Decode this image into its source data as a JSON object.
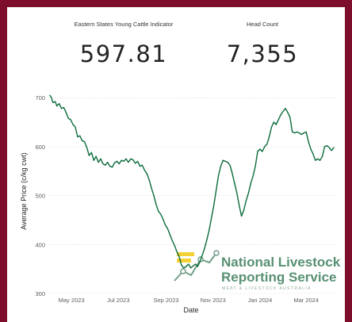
{
  "kpis": {
    "indicator_label": "Eastern States Young Cattle Indicator",
    "indicator_value": "597.81",
    "head_label": "Head Count",
    "head_value": "7,355"
  },
  "watermark": {
    "line1": "National Livestock",
    "line2": "Reporting Service",
    "line3": "MEAT & LIVESTOCK AUSTRALIA"
  },
  "colors": {
    "frame": "#7d0f2c",
    "series": "#0b6b3a",
    "grid": "#e1dfdd",
    "watermark_green": "#3a7d5a",
    "watermark_yellow": "#f2c811"
  },
  "chart_data": {
    "type": "line",
    "xlabel": "Date",
    "ylabel": "Average Price (c/kg cwt)",
    "xlim": [
      "2023-04-01",
      "2024-04-10"
    ],
    "ylim": [
      300,
      710
    ],
    "yticks": [
      300,
      400,
      500,
      600,
      700
    ],
    "xticks": [
      {
        "date": "2023-05-01",
        "label": "May 2023"
      },
      {
        "date": "2023-07-01",
        "label": "Jul 2023"
      },
      {
        "date": "2023-09-01",
        "label": "Sep 2023"
      },
      {
        "date": "2023-11-01",
        "label": "Nov 2023"
      },
      {
        "date": "2024-01-01",
        "label": "Jan 2024"
      },
      {
        "date": "2024-03-01",
        "label": "Mar 2024"
      }
    ],
    "grid": true,
    "series": [
      {
        "color": "#0b6b3a",
        "points": [
          [
            "2023-04-03",
            705
          ],
          [
            "2023-04-05",
            700
          ],
          [
            "2023-04-07",
            690
          ],
          [
            "2023-04-10",
            692
          ],
          [
            "2023-04-12",
            683
          ],
          [
            "2023-04-15",
            688
          ],
          [
            "2023-04-18",
            678
          ],
          [
            "2023-04-21",
            680
          ],
          [
            "2023-04-24",
            670
          ],
          [
            "2023-04-27",
            658
          ],
          [
            "2023-04-30",
            655
          ],
          [
            "2023-05-03",
            645
          ],
          [
            "2023-05-06",
            640
          ],
          [
            "2023-05-09",
            620
          ],
          [
            "2023-05-12",
            622
          ],
          [
            "2023-05-15",
            612
          ],
          [
            "2023-05-18",
            610
          ],
          [
            "2023-05-21",
            598
          ],
          [
            "2023-05-24",
            582
          ],
          [
            "2023-05-27",
            588
          ],
          [
            "2023-05-30",
            572
          ],
          [
            "2023-06-02",
            580
          ],
          [
            "2023-06-05",
            568
          ],
          [
            "2023-06-08",
            575
          ],
          [
            "2023-06-11",
            565
          ],
          [
            "2023-06-14",
            562
          ],
          [
            "2023-06-17",
            568
          ],
          [
            "2023-06-20",
            560
          ],
          [
            "2023-06-23",
            558
          ],
          [
            "2023-06-26",
            567
          ],
          [
            "2023-06-29",
            570
          ],
          [
            "2023-07-02",
            565
          ],
          [
            "2023-07-05",
            572
          ],
          [
            "2023-07-08",
            570
          ],
          [
            "2023-07-11",
            575
          ],
          [
            "2023-07-14",
            568
          ],
          [
            "2023-07-17",
            575
          ],
          [
            "2023-07-20",
            573
          ],
          [
            "2023-07-23",
            566
          ],
          [
            "2023-07-26",
            570
          ],
          [
            "2023-07-29",
            560
          ],
          [
            "2023-08-01",
            562
          ],
          [
            "2023-08-04",
            552
          ],
          [
            "2023-08-07",
            545
          ],
          [
            "2023-08-10",
            532
          ],
          [
            "2023-08-13",
            515
          ],
          [
            "2023-08-16",
            500
          ],
          [
            "2023-08-19",
            482
          ],
          [
            "2023-08-22",
            468
          ],
          [
            "2023-08-25",
            462
          ],
          [
            "2023-08-28",
            452
          ],
          [
            "2023-08-31",
            440
          ],
          [
            "2023-09-03",
            432
          ],
          [
            "2023-09-06",
            420
          ],
          [
            "2023-09-09",
            408
          ],
          [
            "2023-09-12",
            398
          ],
          [
            "2023-09-15",
            385
          ],
          [
            "2023-09-18",
            375
          ],
          [
            "2023-09-21",
            358
          ],
          [
            "2023-09-24",
            352
          ],
          [
            "2023-09-27",
            355
          ],
          [
            "2023-09-30",
            360
          ],
          [
            "2023-10-03",
            352
          ],
          [
            "2023-10-06",
            356
          ],
          [
            "2023-10-09",
            360
          ],
          [
            "2023-10-12",
            355
          ],
          [
            "2023-10-15",
            365
          ],
          [
            "2023-10-18",
            378
          ],
          [
            "2023-10-21",
            392
          ],
          [
            "2023-10-24",
            410
          ],
          [
            "2023-10-27",
            430
          ],
          [
            "2023-10-30",
            455
          ],
          [
            "2023-11-02",
            480
          ],
          [
            "2023-11-05",
            510
          ],
          [
            "2023-11-08",
            540
          ],
          [
            "2023-11-11",
            560
          ],
          [
            "2023-11-14",
            572
          ],
          [
            "2023-11-17",
            570
          ],
          [
            "2023-11-20",
            568
          ],
          [
            "2023-11-23",
            562
          ],
          [
            "2023-11-26",
            545
          ],
          [
            "2023-11-29",
            525
          ],
          [
            "2023-12-02",
            505
          ],
          [
            "2023-12-05",
            480
          ],
          [
            "2023-12-08",
            458
          ],
          [
            "2023-12-11",
            470
          ],
          [
            "2023-12-14",
            490
          ],
          [
            "2023-12-17",
            505
          ],
          [
            "2023-12-20",
            525
          ],
          [
            "2023-12-23",
            540
          ],
          [
            "2023-12-26",
            560
          ],
          [
            "2023-12-29",
            590
          ],
          [
            "2024-01-01",
            595
          ],
          [
            "2024-01-04",
            590
          ],
          [
            "2024-01-07",
            600
          ],
          [
            "2024-01-10",
            605
          ],
          [
            "2024-01-13",
            620
          ],
          [
            "2024-01-16",
            640
          ],
          [
            "2024-01-19",
            650
          ],
          [
            "2024-01-22",
            645
          ],
          [
            "2024-01-25",
            655
          ],
          [
            "2024-01-28",
            665
          ],
          [
            "2024-01-31",
            672
          ],
          [
            "2024-02-03",
            678
          ],
          [
            "2024-02-06",
            670
          ],
          [
            "2024-02-09",
            660
          ],
          [
            "2024-02-12",
            630
          ],
          [
            "2024-02-15",
            628
          ],
          [
            "2024-02-18",
            630
          ],
          [
            "2024-02-21",
            628
          ],
          [
            "2024-02-24",
            625
          ],
          [
            "2024-02-27",
            628
          ],
          [
            "2024-03-01",
            630
          ],
          [
            "2024-03-04",
            610
          ],
          [
            "2024-03-07",
            595
          ],
          [
            "2024-03-10",
            585
          ],
          [
            "2024-03-13",
            572
          ],
          [
            "2024-03-16",
            575
          ],
          [
            "2024-03-19",
            572
          ],
          [
            "2024-03-22",
            580
          ],
          [
            "2024-03-25",
            600
          ],
          [
            "2024-03-28",
            602
          ],
          [
            "2024-03-31",
            598
          ],
          [
            "2024-04-03",
            592
          ],
          [
            "2024-04-06",
            598
          ]
        ]
      }
    ]
  }
}
